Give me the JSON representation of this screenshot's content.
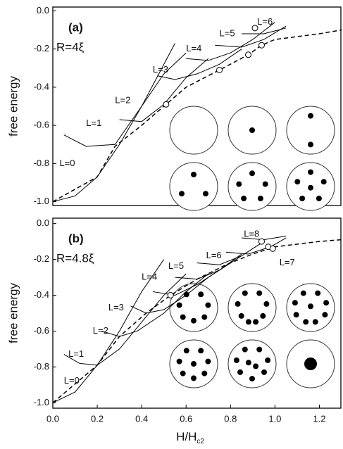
{
  "chart_data": [
    {
      "type": "line",
      "panel_label": "(a)",
      "radius_label": "R=4ξ",
      "y_label": "free energy",
      "xlim": [
        0,
        1.3
      ],
      "ylim": [
        -1.02,
        0.02
      ],
      "yticks": [
        {
          "value": 0,
          "label": "0.0"
        },
        -0.2,
        -0.4,
        -0.6,
        -0.8,
        {
          "value": -1,
          "label": "-1.0"
        }
      ],
      "series": [
        {
          "name": "L=0",
          "color": "#000",
          "x": [
            0,
            0.1,
            0.2,
            0.3,
            0.4,
            0.5,
            0.55
          ],
          "values": [
            -1,
            -0.97,
            -0.87,
            -0.7,
            -0.5,
            -0.28,
            -0.17
          ]
        },
        {
          "name": "L=1",
          "color": "#000",
          "x": [
            0.05,
            0.15,
            0.28,
            0.4,
            0.5,
            0.6
          ],
          "values": [
            -0.65,
            -0.71,
            -0.7,
            -0.5,
            -0.33,
            -0.22
          ]
        },
        {
          "name": "L=2",
          "color": "#000",
          "x": [
            0.3,
            0.4,
            0.5,
            0.6,
            0.7
          ],
          "values": [
            -0.57,
            -0.58,
            -0.49,
            -0.35,
            -0.25
          ]
        },
        {
          "name": "L=3",
          "color": "#000",
          "x": [
            0.47,
            0.55,
            0.65,
            0.75,
            0.85
          ],
          "values": [
            -0.34,
            -0.36,
            -0.33,
            -0.28,
            -0.2
          ]
        },
        {
          "name": "L=4",
          "color": "#000",
          "x": [
            0.6,
            0.7,
            0.8,
            0.9,
            1.0
          ],
          "values": [
            -0.25,
            -0.26,
            -0.22,
            -0.15,
            -0.06
          ]
        },
        {
          "name": "L=5",
          "color": "#000",
          "x": [
            0.73,
            0.85,
            0.95,
            1.05
          ],
          "values": [
            -0.18,
            -0.19,
            -0.15,
            -0.08
          ]
        },
        {
          "name": "L=6",
          "color": "#000",
          "x": [
            0.85,
            0.95,
            1.05
          ],
          "values": [
            -0.12,
            -0.12,
            -0.09
          ]
        },
        {
          "color": "#000",
          "dashed": true,
          "x": [
            0,
            0.2,
            0.28,
            0.4,
            0.51,
            0.6,
            0.75,
            0.88,
            0.94,
            1.0,
            1.2,
            1.3
          ],
          "values": [
            -1,
            -0.87,
            -0.71,
            -0.6,
            -0.49,
            -0.4,
            -0.31,
            -0.23,
            -0.18,
            -0.15,
            -0.12,
            -0.1
          ]
        },
        {
          "color": "#000",
          "markers": true,
          "x": [
            0.51,
            0.75,
            0.88,
            0.94,
            0.91
          ],
          "values": [
            -0.49,
            -0.31,
            -0.23,
            -0.18,
            -0.09
          ]
        }
      ]
    },
    {
      "type": "line",
      "panel_label": "(b)",
      "radius_label": "R=4.8ξ",
      "y_label": "free energy",
      "x_label": "H/H",
      "x_label_sub": "c2",
      "xlim": [
        0,
        1.3
      ],
      "ylim": [
        -1.03,
        0.03
      ],
      "yticks": [
        {
          "value": 0,
          "label": "0.0"
        },
        -0.2,
        -0.4,
        -0.6,
        -0.8,
        {
          "value": -1,
          "label": "-1.0"
        }
      ],
      "xticks": [
        {
          "value": 0,
          "label": "0.0"
        },
        0.2,
        0.4,
        0.6,
        0.8,
        {
          "value": 1,
          "label": "1.0"
        },
        1.2
      ],
      "series": [
        {
          "name": "L=0",
          "color": "#000",
          "x": [
            0,
            0.1,
            0.2,
            0.3,
            0.4,
            0.5
          ],
          "values": [
            -1,
            -0.94,
            -0.79,
            -0.6,
            -0.38,
            -0.2
          ]
        },
        {
          "name": "L=1",
          "color": "#000",
          "x": [
            0.05,
            0.12,
            0.2,
            0.3,
            0.4,
            0.5,
            0.6
          ],
          "values": [
            -0.73,
            -0.78,
            -0.79,
            -0.7,
            -0.55,
            -0.4,
            -0.28
          ]
        },
        {
          "name": "L=2",
          "color": "#000",
          "x": [
            0.22,
            0.3,
            0.38,
            0.5,
            0.6,
            0.7
          ],
          "values": [
            -0.6,
            -0.63,
            -0.6,
            -0.5,
            -0.38,
            -0.28
          ]
        },
        {
          "name": "L=3",
          "color": "#000",
          "x": [
            0.35,
            0.42,
            0.5,
            0.6,
            0.7,
            0.8
          ],
          "values": [
            -0.46,
            -0.5,
            -0.48,
            -0.4,
            -0.3,
            -0.22
          ]
        },
        {
          "name": "L=4",
          "color": "#000",
          "x": [
            0.45,
            0.55,
            0.65,
            0.75,
            0.85
          ],
          "values": [
            -0.38,
            -0.4,
            -0.34,
            -0.26,
            -0.17
          ]
        },
        {
          "name": "L=5",
          "color": "#000",
          "x": [
            0.55,
            0.65,
            0.75,
            0.85,
            0.95
          ],
          "values": [
            -0.3,
            -0.31,
            -0.26,
            -0.18,
            -0.1
          ]
        },
        {
          "name": "L=6",
          "color": "#000",
          "x": [
            0.65,
            0.75,
            0.85,
            0.95
          ],
          "values": [
            -0.22,
            -0.23,
            -0.18,
            -0.1
          ]
        },
        {
          "name": "L=7",
          "color": "#000",
          "x": [
            0.78,
            0.88,
            0.98,
            1.05
          ],
          "values": [
            -0.16,
            -0.17,
            -0.13,
            -0.08
          ]
        },
        {
          "name": "L=8",
          "color": "#000",
          "x": [
            0.85,
            0.95,
            1.05
          ],
          "values": [
            -0.08,
            -0.09,
            -0.07
          ]
        },
        {
          "color": "#000",
          "dashed": true,
          "x": [
            0,
            0.2,
            0.3,
            0.42,
            0.53,
            0.65,
            0.78,
            0.9,
            1.0,
            1.2,
            1.3
          ],
          "values": [
            -1,
            -0.79,
            -0.63,
            -0.5,
            -0.4,
            -0.31,
            -0.23,
            -0.17,
            -0.13,
            -0.1,
            -0.09
          ]
        },
        {
          "color": "#000",
          "markers": true,
          "x": [
            0.53,
            0.94,
            0.97,
            0.99
          ],
          "values": [
            -0.4,
            -0.1,
            -0.13,
            -0.14
          ]
        }
      ]
    }
  ]
}
